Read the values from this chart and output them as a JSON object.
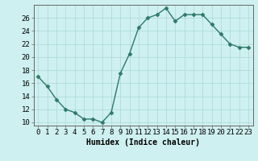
{
  "x": [
    0,
    1,
    2,
    3,
    4,
    5,
    6,
    7,
    8,
    9,
    10,
    11,
    12,
    13,
    14,
    15,
    16,
    17,
    18,
    19,
    20,
    21,
    22,
    23
  ],
  "y": [
    17,
    15.5,
    13.5,
    12,
    11.5,
    10.5,
    10.5,
    10,
    11.5,
    17.5,
    20.5,
    24.5,
    26,
    26.5,
    27.5,
    25.5,
    26.5,
    26.5,
    26.5,
    25,
    23.5,
    22,
    21.5,
    21.5
  ],
  "line_color": "#2d7a6a",
  "marker": "D",
  "marker_size": 2.5,
  "bg_color": "#cff0f0",
  "grid_color": "#a8d8d8",
  "xlabel": "Humidex (Indice chaleur)",
  "xlabel_fontsize": 7,
  "ylabel_ticks": [
    10,
    12,
    14,
    16,
    18,
    20,
    22,
    24,
    26
  ],
  "xlim": [
    -0.5,
    23.5
  ],
  "ylim": [
    9.5,
    28.0
  ],
  "tick_fontsize": 6.5,
  "line_width": 1.0,
  "spine_color": "#666666",
  "axis_bg": "#cff0f0"
}
